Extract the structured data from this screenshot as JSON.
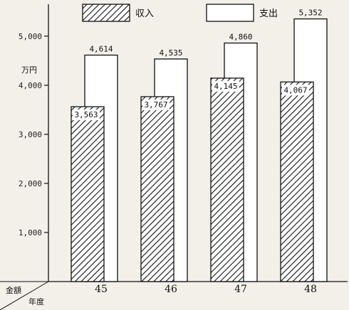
{
  "chart_data": {
    "type": "bar",
    "categories": [
      "45",
      "46",
      "47",
      "48"
    ],
    "series": [
      {
        "name": "収入",
        "values": [
          3563,
          3767,
          4145,
          4067
        ],
        "labels": [
          "3,563",
          "3,767",
          "4,145",
          "4,067"
        ],
        "fill": "hatched"
      },
      {
        "name": "支出",
        "values": [
          4614,
          4535,
          4860,
          5352
        ],
        "labels": [
          "4,614",
          "4,535",
          "4,860",
          "5,352"
        ],
        "fill": "white"
      }
    ],
    "ylabel": "万円",
    "yticks": [
      1000,
      2000,
      3000,
      4000,
      5000
    ],
    "ytick_labels": [
      "1,000",
      "2,000",
      "3,000",
      "4,000",
      "5,000"
    ],
    "ylim": [
      0,
      5650
    ],
    "corner_row_label": "金額",
    "corner_col_label": "年度",
    "legend_position": "top",
    "grid": false,
    "colors": {
      "ink": "#111111",
      "paper": "#f3f0ea",
      "bar_white": "#ffffff"
    }
  }
}
